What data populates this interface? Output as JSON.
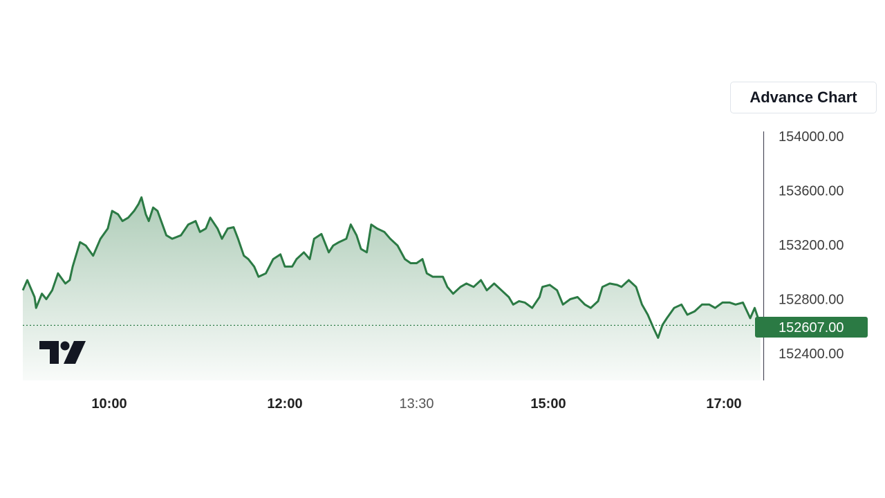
{
  "button": {
    "advance_chart": "Advance Chart"
  },
  "colors": {
    "line": "#2b7a44",
    "label_bg": "#2b7a44",
    "axis": "#4a4a5a",
    "logo": "#131722"
  },
  "logo_icon": "tradingview-logo",
  "chart_data": {
    "type": "area",
    "title": "",
    "xlabel": "",
    "ylabel": "",
    "ylim": [
      152200,
      154030
    ],
    "y_ticks": [
      "154000.00",
      "153600.00",
      "153200.00",
      "152800.00",
      "152400.00"
    ],
    "x_ticks": [
      {
        "label": "10:00",
        "bold": true
      },
      {
        "label": "12:00",
        "bold": true
      },
      {
        "label": "13:30",
        "bold": false
      },
      {
        "label": "15:00",
        "bold": true
      },
      {
        "label": "17:00",
        "bold": true
      }
    ],
    "last_price": 152607,
    "last_price_label": "152607.00",
    "grid": false,
    "x": [
      "09:01",
      "09:04",
      "09:09",
      "09:10",
      "09:14",
      "09:17",
      "09:21",
      "09:25",
      "09:30",
      "09:33",
      "09:35",
      "09:40",
      "09:44",
      "09:49",
      "09:54",
      "09:59",
      "10:02",
      "10:06",
      "10:09",
      "10:13",
      "10:17",
      "10:20",
      "10:22",
      "10:25",
      "10:27",
      "10:30",
      "10:33",
      "10:39",
      "10:43",
      "10:49",
      "10:54",
      "10:59",
      "11:02",
      "11:06",
      "11:09",
      "11:14",
      "11:17",
      "11:21",
      "11:25",
      "11:28",
      "11:32",
      "11:35",
      "11:39",
      "11:42",
      "11:47",
      "11:52",
      "11:57",
      "12:00",
      "12:05",
      "12:08",
      "12:13",
      "12:17",
      "12:20",
      "12:25",
      "12:30",
      "12:33",
      "12:37",
      "12:42",
      "12:45",
      "12:49",
      "12:52",
      "12:56",
      "12:59",
      "13:03",
      "13:08",
      "13:12",
      "13:17",
      "13:22",
      "13:26",
      "13:30",
      "13:34",
      "13:37",
      "13:41",
      "13:48",
      "13:51",
      "13:55",
      "14:00",
      "14:04",
      "14:09",
      "14:14",
      "14:18",
      "14:23",
      "14:28",
      "14:33",
      "14:36",
      "14:40",
      "14:44",
      "14:49",
      "14:54",
      "14:56",
      "15:01",
      "15:06",
      "15:10",
      "15:15",
      "15:20",
      "15:25",
      "15:29",
      "15:34",
      "15:37",
      "15:42",
      "15:47",
      "15:50",
      "15:55",
      "16:00",
      "16:04",
      "16:08",
      "16:12",
      "16:15",
      "16:18",
      "16:21",
      "16:26",
      "16:31",
      "16:35",
      "16:40",
      "16:45",
      "16:50",
      "16:54",
      "16:59",
      "17:04",
      "17:08",
      "17:13",
      "17:18",
      "17:21",
      "17:25"
    ],
    "values": [
      152865,
      152940,
      152815,
      152735,
      152840,
      152800,
      152865,
      152990,
      152915,
      152940,
      153040,
      153220,
      153195,
      153120,
      153245,
      153320,
      153450,
      153425,
      153375,
      153400,
      153450,
      153500,
      153550,
      153425,
      153375,
      153475,
      153450,
      153270,
      153245,
      153270,
      153350,
      153375,
      153295,
      153320,
      153400,
      153320,
      153245,
      153320,
      153330,
      153245,
      153120,
      153095,
      153040,
      152965,
      152990,
      153095,
      153130,
      153040,
      153040,
      153095,
      153145,
      153095,
      153245,
      153280,
      153145,
      153195,
      153220,
      153245,
      153350,
      153270,
      153170,
      153145,
      153350,
      153320,
      153295,
      153245,
      153195,
      153095,
      153065,
      153065,
      153095,
      152990,
      152965,
      152965,
      152890,
      152840,
      152890,
      152915,
      152890,
      152940,
      152865,
      152915,
      152865,
      152815,
      152760,
      152785,
      152775,
      152735,
      152815,
      152890,
      152905,
      152865,
      152760,
      152800,
      152815,
      152760,
      152735,
      152785,
      152890,
      152915,
      152905,
      152890,
      152940,
      152890,
      152760,
      152685,
      152585,
      152515,
      152610,
      152660,
      152735,
      152760,
      152685,
      152710,
      152760,
      152760,
      152735,
      152775,
      152775,
      152760,
      152775,
      152660,
      152735,
      152607
    ]
  }
}
